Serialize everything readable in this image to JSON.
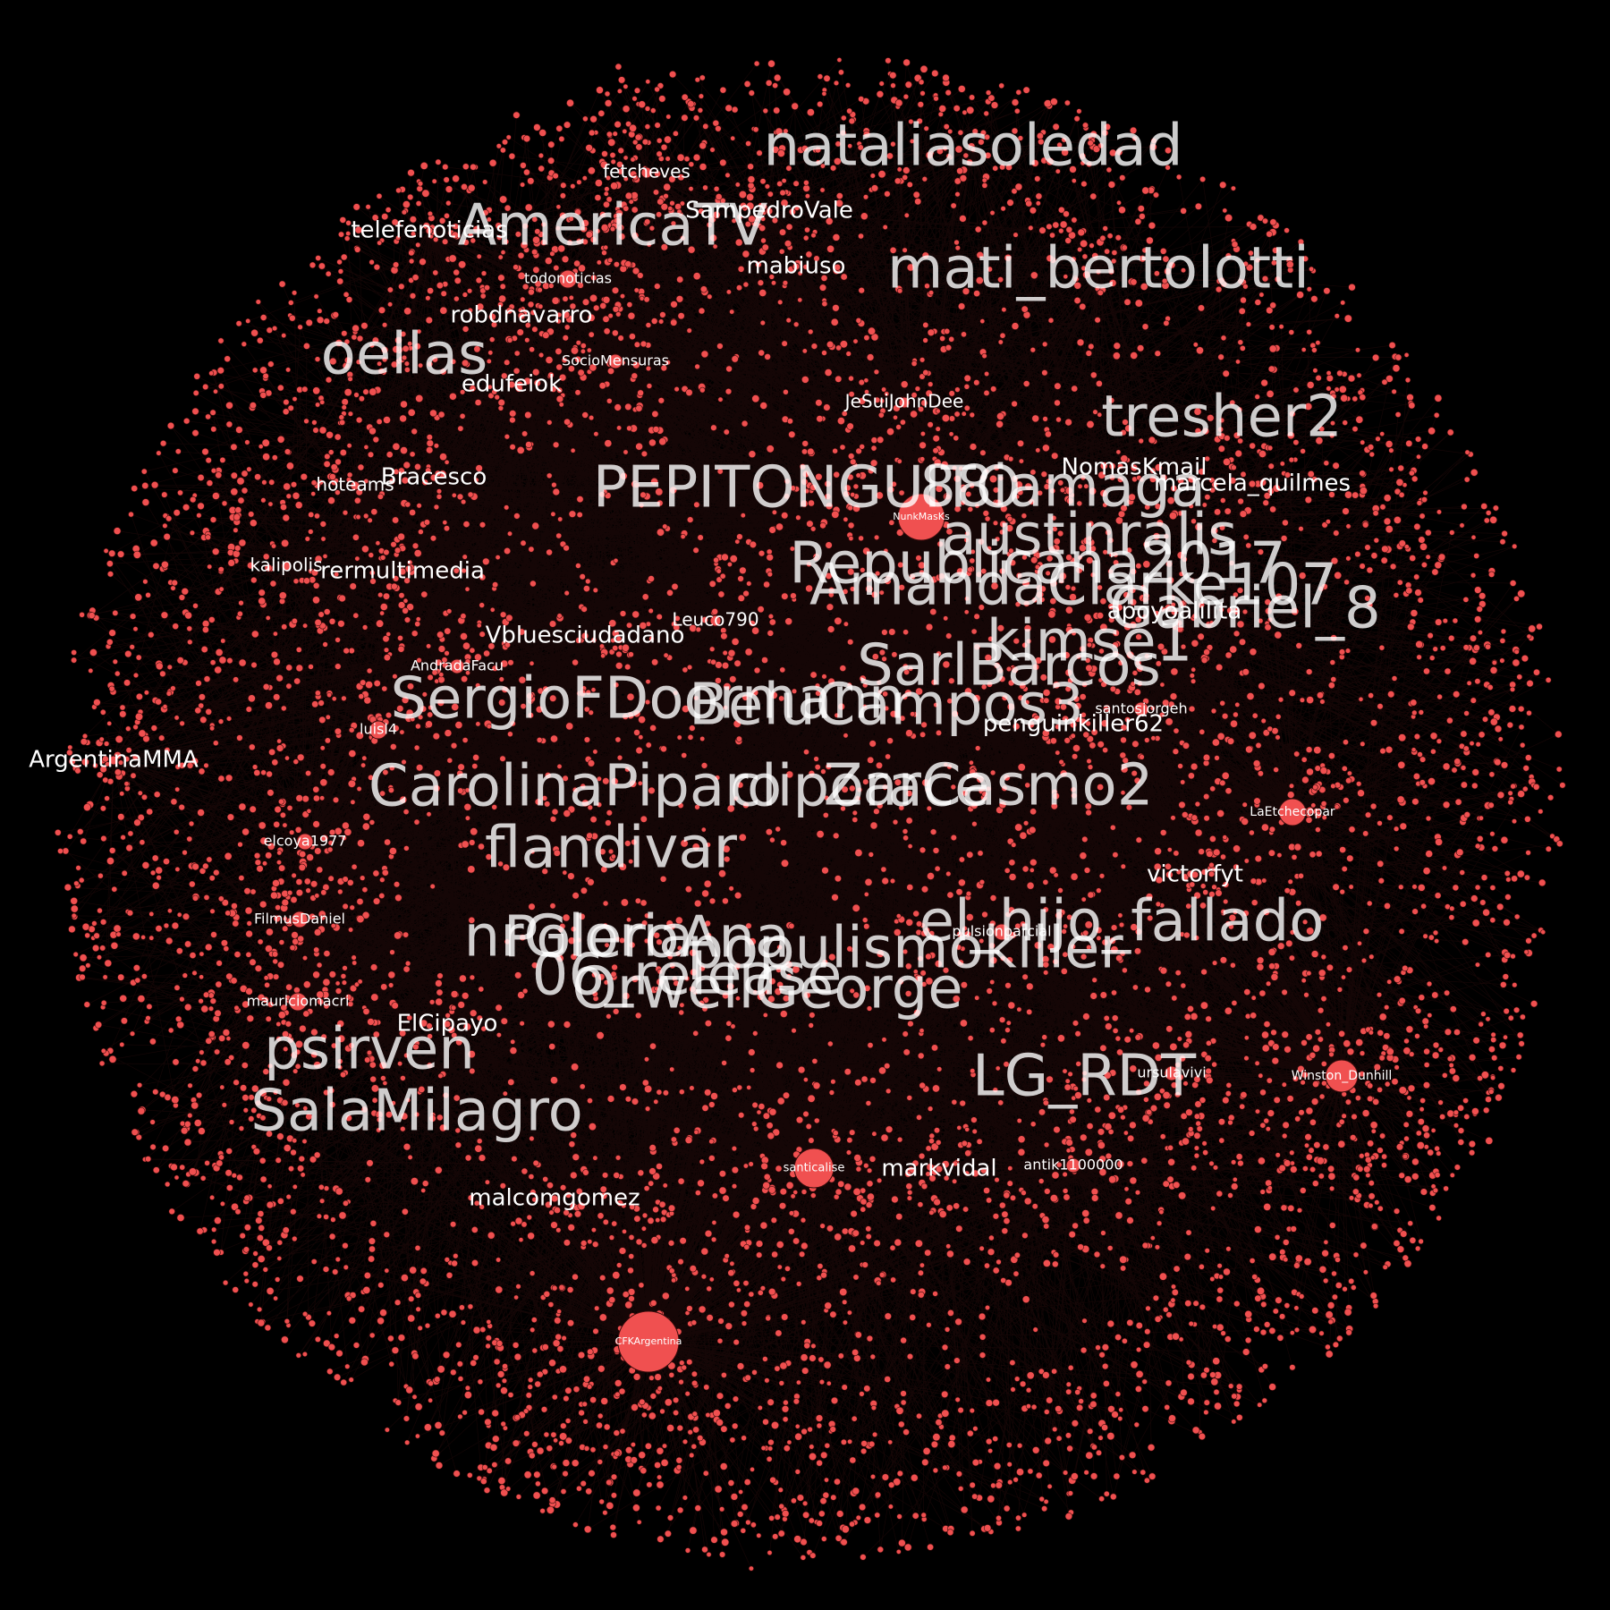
{
  "graph": {
    "background_color": "#000000",
    "node_color": "#f05050",
    "edge_color": "#e84848",
    "label_color": "#ffffff",
    "labels": [
      {
        "text": "NunkMasKs",
        "level": 6
      },
      {
        "text": "CFKArgentina",
        "level": 6
      },
      {
        "text": "santicalise",
        "level": 5
      },
      {
        "text": "Winston_Dunhill",
        "level": 4
      },
      {
        "text": "LaEtchecopar",
        "level": 4
      },
      {
        "text": "luisl4",
        "level": 3
      },
      {
        "text": "mauriciomacri",
        "level": 3
      },
      {
        "text": "FilmusDaniel",
        "level": 3
      },
      {
        "text": "elcoya1977",
        "level": 3
      },
      {
        "text": "AndradaFacu",
        "level": 3
      },
      {
        "text": "todonoticias",
        "level": 3
      },
      {
        "text": "SocioMensuras",
        "level": 3
      },
      {
        "text": "pulsionparcial",
        "level": 3
      },
      {
        "text": "santosjorgeh",
        "level": 3
      },
      {
        "text": "antik1100000",
        "level": 3
      },
      {
        "text": "ursulavivi",
        "level": 3
      },
      {
        "text": "Leuco790",
        "level": 2
      },
      {
        "text": "JeSuiJohnDee",
        "level": 2
      },
      {
        "text": "kalipolis",
        "level": 2
      },
      {
        "text": "hoteams",
        "level": 2
      },
      {
        "text": "fetcheves",
        "level": 2
      },
      {
        "text": "telefenoticias",
        "level": 1
      },
      {
        "text": "SampedroVale",
        "level": 1
      },
      {
        "text": "robdnavarro",
        "level": 1
      },
      {
        "text": "edufeiok",
        "level": 1
      },
      {
        "text": "mabiuso",
        "level": 1
      },
      {
        "text": "Bracesco",
        "level": 1
      },
      {
        "text": "rermultimedia",
        "level": 1
      },
      {
        "text": "Vbluesciudadano",
        "level": 1
      },
      {
        "text": "ArgentinaMMA",
        "level": 1
      },
      {
        "text": "ElCipayo",
        "level": 1
      },
      {
        "text": "malcomgomez",
        "level": 1
      },
      {
        "text": "victorfyt",
        "level": 1
      },
      {
        "text": "apoyoalilita",
        "level": 1
      },
      {
        "text": "NomasKmail",
        "level": 1
      },
      {
        "text": "marcela_quilmes",
        "level": 1
      },
      {
        "text": "penguinkiller62",
        "level": 1
      },
      {
        "text": "markvidal",
        "level": 1
      },
      {
        "text": "nataliasoledad",
        "level": 0
      },
      {
        "text": "AmericaTV",
        "level": 0
      },
      {
        "text": "mati_bertolotti",
        "level": 0
      },
      {
        "text": "oellas",
        "level": 0
      },
      {
        "text": "tresher2",
        "level": 0
      },
      {
        "text": "PEPITONGUITO",
        "level": 0
      },
      {
        "text": "88iamaga",
        "level": 0
      },
      {
        "text": "austinralis",
        "level": 0
      },
      {
        "text": "Republicana2017",
        "level": 0
      },
      {
        "text": "AmandaClarke107",
        "level": 0
      },
      {
        "text": "Gabriel_8",
        "level": 0
      },
      {
        "text": "kimse1",
        "level": 0
      },
      {
        "text": "SarlBarcos",
        "level": 0
      },
      {
        "text": "SergioFDoormann",
        "level": 0
      },
      {
        "text": "BeluCampos3",
        "level": 0
      },
      {
        "text": "CarolinaPiparo",
        "level": 0
      },
      {
        "text": "cliporace",
        "level": 0
      },
      {
        "text": "ZarCasmo2",
        "level": 0
      },
      {
        "text": "flandivar",
        "level": 0
      },
      {
        "text": "el_hijo_fallado",
        "level": 0
      },
      {
        "text": "nrGloria",
        "level": 0
      },
      {
        "text": "PoleroAna",
        "level": 0
      },
      {
        "text": "populismokiller",
        "level": 0
      },
      {
        "text": "06_release",
        "level": 0
      },
      {
        "text": "OrwellGeorge",
        "level": 0
      },
      {
        "text": "psirven",
        "level": 0
      },
      {
        "text": "LG_RDT",
        "level": 0
      },
      {
        "text": "SalaMilagro",
        "level": 0
      }
    ]
  }
}
